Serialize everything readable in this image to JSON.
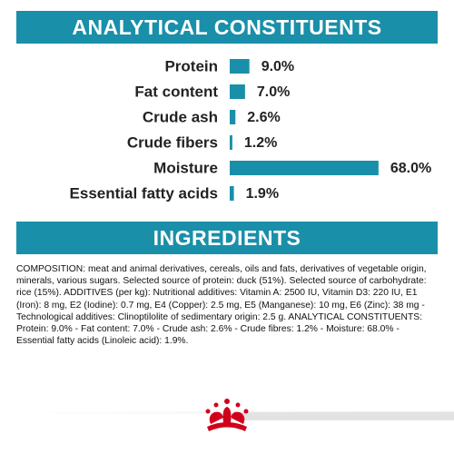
{
  "chart_data": {
    "type": "bar",
    "orientation": "horizontal",
    "title": "ANALYTICAL CONSTITUENTS",
    "color": "#1a8fa9",
    "categories": [
      "Protein",
      "Fat content",
      "Crude ash",
      "Crude fibers",
      "Moisture",
      "Essential fatty acids"
    ],
    "values": [
      9.0,
      7.0,
      2.6,
      1.2,
      68.0,
      1.9
    ],
    "value_labels": [
      "9.0%",
      "7.0%",
      "2.6%",
      "1.2%",
      "68.0%",
      "1.9%"
    ]
  },
  "ingredients": {
    "title": "INGREDIENTS",
    "text": "COMPOSITION: meat and animal derivatives, cereals, oils and fats, derivatives of vegetable origin, minerals, various sugars. Selected source of protein: duck (51%). Selected source of carbohydrate: rice (15%). ADDITIVES (per kg): Nutritional additives: Vitamin A: 2500 IU, Vitamin D3: 220 IU, E1 (Iron): 8 mg, E2 (Iodine): 0.7 mg, E4 (Copper): 2.5 mg, E5 (Manganese): 10 mg, E6 (Zinc): 38 mg - Technological additives: Clinoptilolite of sedimentary origin: 2.5 g. ANALYTICAL CONSTITUENTS: Protein: 9.0% - Fat content: 7.0% - Crude ash: 2.6% - Crude fibres: 1.2% - Moisture: 68.0% - Essential fatty acids (Linoleic acid): 1.9%."
  }
}
